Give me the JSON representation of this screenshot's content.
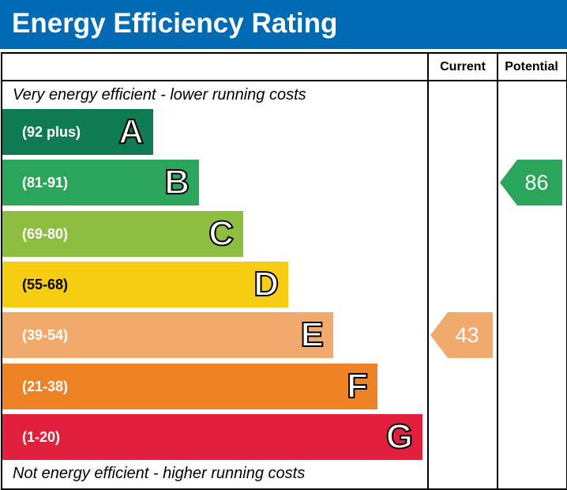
{
  "header": {
    "title": "Energy Efficiency Rating"
  },
  "columns": {
    "current": "Current",
    "potential": "Potential"
  },
  "captions": {
    "top": "Very energy efficient - lower running costs",
    "bottom": "Not energy efficient - higher running costs"
  },
  "chart_data": {
    "type": "bar",
    "title": "Energy Efficiency Rating",
    "bands": [
      {
        "letter": "A",
        "range": "(92 plus)",
        "color": "#0f7b52"
      },
      {
        "letter": "B",
        "range": "(81-91)",
        "color": "#2aa55a"
      },
      {
        "letter": "C",
        "range": "(69-80)",
        "color": "#8dbe41"
      },
      {
        "letter": "D",
        "range": "(55-68)",
        "color": "#f7cd14"
      },
      {
        "letter": "E",
        "range": "(39-54)",
        "color": "#f2aa6c"
      },
      {
        "letter": "F",
        "range": "(21-38)",
        "color": "#ee8226"
      },
      {
        "letter": "G",
        "range": "(1-20)",
        "color": "#e2203d"
      }
    ],
    "current": {
      "value": 43,
      "band": "E",
      "color": "#f2aa6c"
    },
    "potential": {
      "value": 86,
      "band": "B",
      "color": "#2aa55a"
    }
  }
}
